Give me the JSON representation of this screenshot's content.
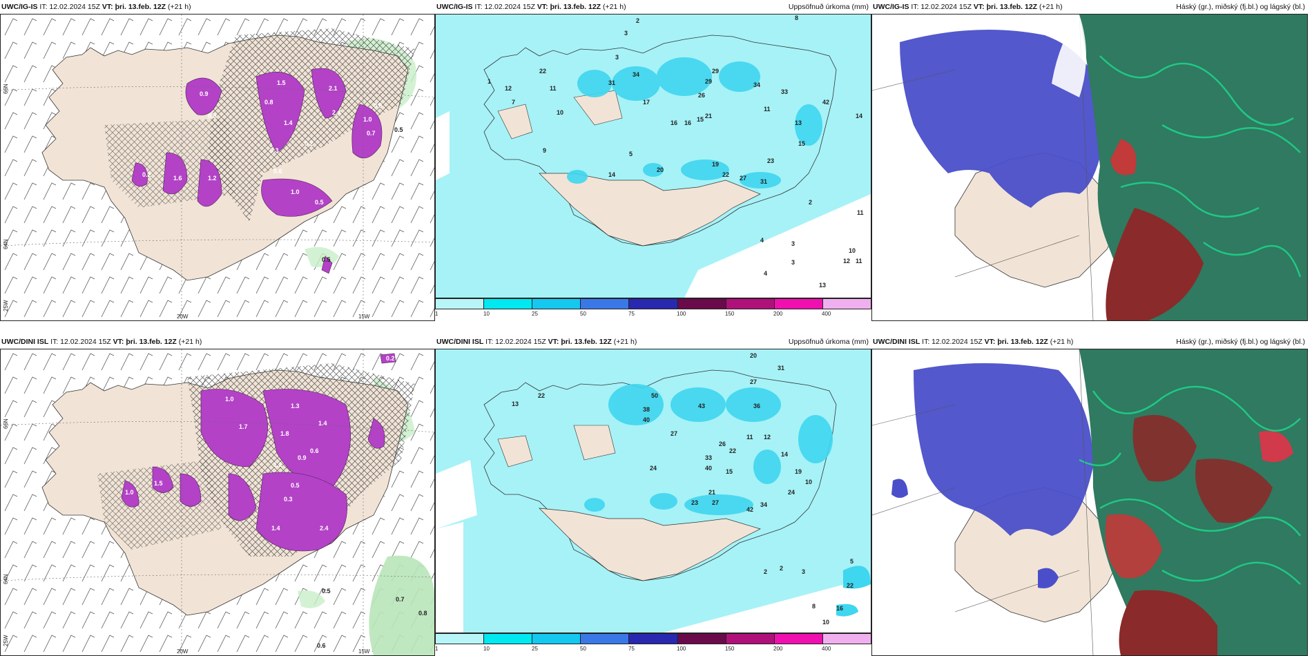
{
  "panels": [
    {
      "id": "top-left",
      "header_left_model": "UWC/IG-IS",
      "header_left_rest": " IT: 12.02.2024 15Z ",
      "header_vt": "VT: þri. 13.feb. 12Z",
      "header_lead": " (+21 h)",
      "header_right": "",
      "lon_labels": [
        "20W",
        "15W"
      ],
      "lat_labels": [
        "66N",
        "64N",
        "25W"
      ],
      "value_labels": [
        "0.9",
        "1.5",
        "0.8",
        "1.4",
        "2.1",
        "1.6",
        "0.7",
        "1.2",
        "1.0",
        "0.5",
        "0.3",
        "0.6",
        "1.0",
        "2.4",
        "0.2",
        "0.5",
        "0.9",
        "0.2",
        "0.5",
        "0.5"
      ]
    },
    {
      "id": "top-middle",
      "header_left_model": "UWC/IG-IS",
      "header_left_rest": " IT: 12.02.2024 15Z ",
      "header_vt": "VT: þri. 13.feb. 12Z",
      "header_lead": " (+21 h)",
      "header_right": "Uppsöfnuð úrkoma (mm)",
      "value_labels": [
        "2",
        "3",
        "8",
        "1",
        "22",
        "12",
        "7",
        "3",
        "11",
        "31",
        "34",
        "17",
        "29",
        "34",
        "26",
        "29",
        "16",
        "11",
        "16",
        "13",
        "10",
        "23",
        "33",
        "15",
        "15",
        "21",
        "14",
        "9",
        "5",
        "20",
        "19",
        "22",
        "27",
        "31",
        "42",
        "14",
        "2",
        "11",
        "4",
        "3",
        "10",
        "12",
        "11",
        "13",
        "3",
        "4"
      ]
    },
    {
      "id": "top-right",
      "header_left_model": "UWC/IG-IS",
      "header_left_rest": " IT: 12.02.2024 15Z ",
      "header_vt": "VT: þri. 13.feb. 12Z",
      "header_lead": " (+21 h)",
      "header_right": "Háský (gr.), miðský (fj.bl.) og lágský (bl.)"
    },
    {
      "id": "bottom-left",
      "header_left_model": "UWC/DINI ISL",
      "header_left_rest": " IT: 12.02.2024 15Z ",
      "header_vt": "VT: þri. 13.feb. 12Z",
      "header_lead": " (+21 h)",
      "header_right": "",
      "lon_labels": [
        "20W",
        "15W"
      ],
      "lat_labels": [
        "66N",
        "64N",
        "25W"
      ],
      "value_labels": [
        "0.2",
        "1.0",
        "1.3",
        "1.4",
        "1.7",
        "1.8",
        "0.9",
        "1.2",
        "0.6",
        "0.5",
        "0.3",
        "2.4",
        "1.4",
        "0.7",
        "0.8",
        "0.5",
        "0.6",
        "1.0",
        "1.5"
      ]
    },
    {
      "id": "bottom-middle",
      "header_left_model": "UWC/DINI ISL",
      "header_left_rest": " IT: 12.02.2024 15Z ",
      "header_vt": "VT: þri. 13.feb. 12Z",
      "header_lead": " (+21 h)",
      "header_right": "Uppsöfnuð úrkoma (mm)",
      "value_labels": [
        "20",
        "27",
        "31",
        "22",
        "13",
        "50",
        "38",
        "43",
        "36",
        "40",
        "27",
        "14",
        "33",
        "26",
        "11",
        "12",
        "22",
        "24",
        "40",
        "15",
        "21",
        "42",
        "34",
        "24",
        "23",
        "27",
        "19",
        "10",
        "5",
        "22",
        "16",
        "3",
        "2",
        "8",
        "2",
        "10"
      ]
    },
    {
      "id": "bottom-right",
      "header_left_model": "UWC/DINI ISL",
      "header_left_rest": " IT: 12.02.2024 15Z ",
      "header_vt": "VT: þri. 13.feb. 12Z",
      "header_lead": " (+21 h)",
      "header_right": "Háský (gr.), miðský (fj.bl.) og lágský (bl.)"
    }
  ],
  "colorbar": {
    "ticks": [
      "1",
      "10",
      "25",
      "50",
      "75",
      "100",
      "150",
      "200",
      "400"
    ],
    "colors": [
      "#b8f5f8",
      "#00e8f0",
      "#14c8f0",
      "#3a78e8",
      "#2828b0",
      "#6a0a4a",
      "#b0107a",
      "#f010b0",
      "#f0b0f0"
    ]
  },
  "colors": {
    "land": "#f1e4d6",
    "precip_light": "#a6f2f7",
    "precip_mid": "#3fd6ef",
    "snow": "#b342c7",
    "low_cloud": "#4a4fc9",
    "mid_cloud": "#2f7a60",
    "high_cloud": "#c23a3a"
  }
}
